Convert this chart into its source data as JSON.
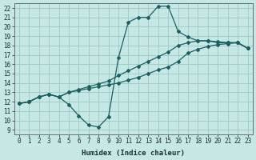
{
  "xlabel": "Humidex (Indice chaleur)",
  "ylabel": "",
  "xlim": [
    -0.5,
    23.5
  ],
  "ylim": [
    8.5,
    22.5
  ],
  "xticks": [
    0,
    1,
    2,
    3,
    4,
    5,
    6,
    7,
    8,
    9,
    10,
    11,
    12,
    13,
    14,
    15,
    16,
    17,
    18,
    19,
    20,
    21,
    22,
    23
  ],
  "yticks": [
    9,
    10,
    11,
    12,
    13,
    14,
    15,
    16,
    17,
    18,
    19,
    20,
    21,
    22
  ],
  "bg_color": "#c5e8e5",
  "grid_color": "#9ec8c5",
  "line_color": "#1a6060",
  "line1_x": [
    0,
    1,
    2,
    3,
    4,
    5,
    6,
    7,
    8,
    9,
    10,
    11,
    12,
    13,
    14,
    15,
    16,
    17,
    18,
    19,
    20,
    21,
    22,
    23
  ],
  "line1_y": [
    11.8,
    12.0,
    12.5,
    12.8,
    12.5,
    11.7,
    10.5,
    9.5,
    9.3,
    10.4,
    16.7,
    20.5,
    21.0,
    21.0,
    22.2,
    22.2,
    19.5,
    18.9,
    18.5,
    18.5,
    18.3,
    18.3,
    18.3,
    17.7
  ],
  "line2_x": [
    0,
    1,
    2,
    3,
    4,
    5,
    6,
    7,
    8,
    9,
    10,
    11,
    12,
    13,
    14,
    15,
    16,
    17,
    18,
    19,
    20,
    21,
    22,
    23
  ],
  "line2_y": [
    11.8,
    12.0,
    12.5,
    12.8,
    12.5,
    13.0,
    13.2,
    13.4,
    13.6,
    13.8,
    14.0,
    14.3,
    14.6,
    15.0,
    15.4,
    15.7,
    16.3,
    17.2,
    17.6,
    17.9,
    18.1,
    18.2,
    18.3,
    17.7
  ],
  "line3_x": [
    0,
    1,
    2,
    3,
    4,
    5,
    6,
    7,
    8,
    9,
    10,
    11,
    12,
    13,
    14,
    15,
    16,
    17,
    18,
    19,
    20,
    21,
    22,
    23
  ],
  "line3_y": [
    11.8,
    12.0,
    12.5,
    12.8,
    12.5,
    13.0,
    13.3,
    13.6,
    13.9,
    14.2,
    14.8,
    15.3,
    15.8,
    16.3,
    16.8,
    17.3,
    18.0,
    18.3,
    18.5,
    18.5,
    18.4,
    18.3,
    18.3,
    17.7
  ]
}
